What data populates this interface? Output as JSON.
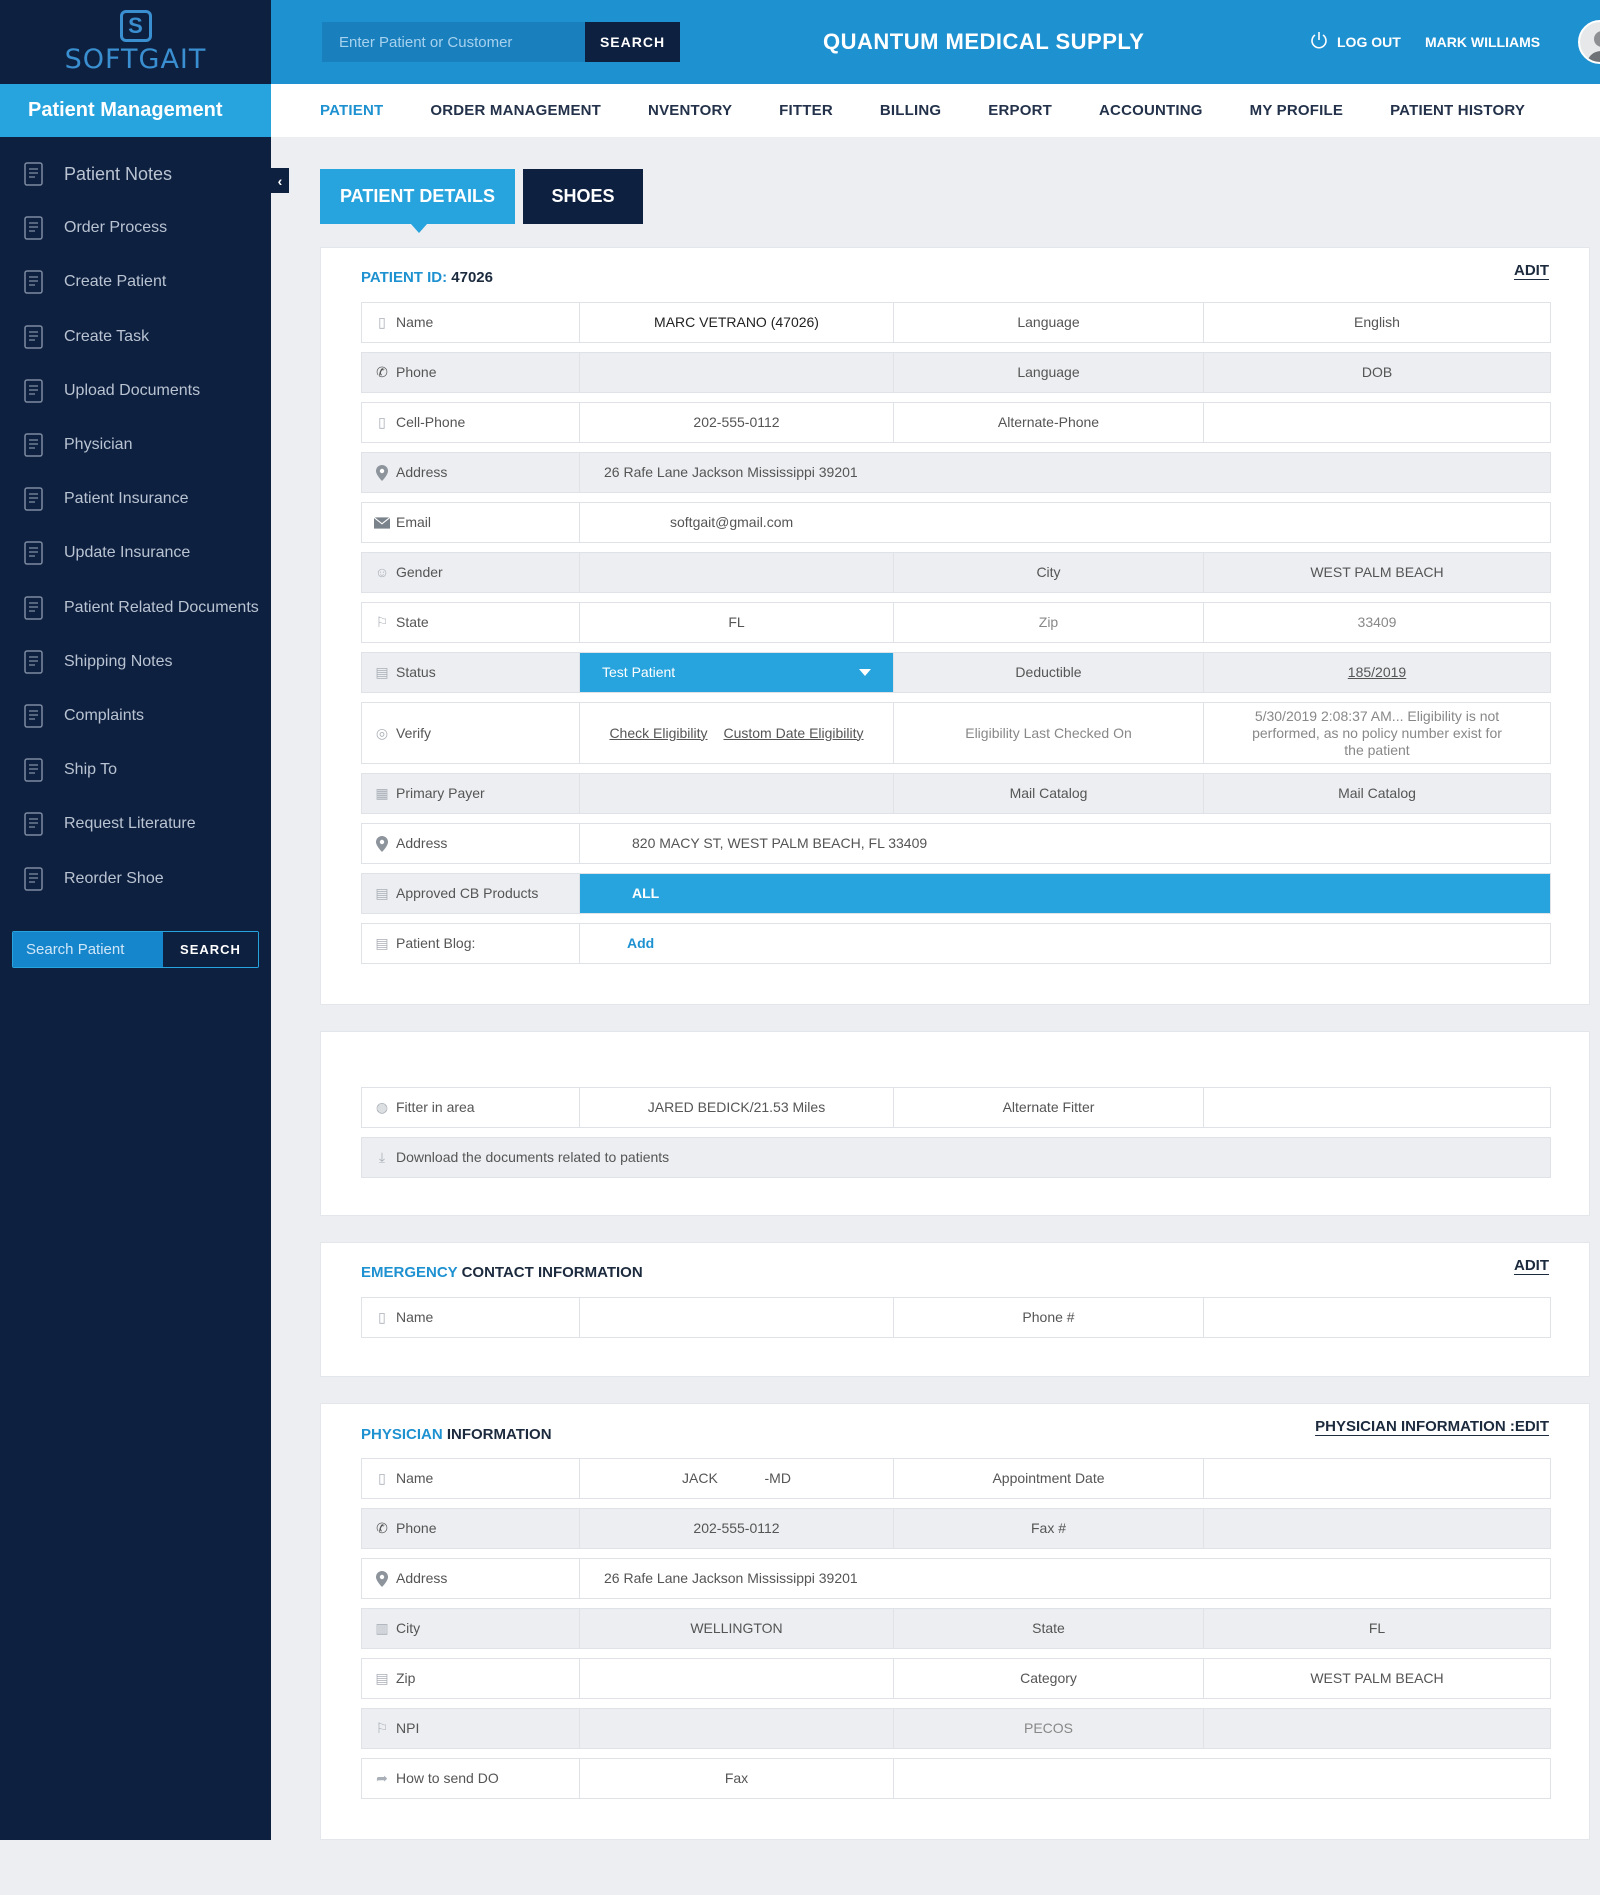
{
  "sidebar": {
    "logo_text": "SOFTGAIT",
    "title": "Patient Management",
    "items": [
      {
        "label": "Patient Notes",
        "icon": "notes-icon"
      },
      {
        "label": "Order Process",
        "icon": "truck-icon"
      },
      {
        "label": "Create Patient",
        "icon": "shield-icon"
      },
      {
        "label": "Create Task",
        "icon": "task-icon"
      },
      {
        "label": "Upload Documents",
        "icon": "upload-icon"
      },
      {
        "label": "Physician",
        "icon": "physician-icon"
      },
      {
        "label": "Patient Insurance",
        "icon": "insurance-icon"
      },
      {
        "label": "Update Insurance",
        "icon": "shield-icon"
      },
      {
        "label": "Patient Related Documents",
        "icon": "document-icon"
      },
      {
        "label": "Shipping Notes",
        "icon": "shipping-icon"
      },
      {
        "label": "Complaints",
        "icon": "complaints-icon"
      },
      {
        "label": "Ship To",
        "icon": "cart-icon"
      },
      {
        "label": "Request Literature",
        "icon": "literature-icon"
      },
      {
        "label": "Reorder Shoe",
        "icon": "reorder-icon"
      }
    ],
    "search": {
      "placeholder": "Search Patient",
      "button": "SEARCH"
    }
  },
  "topbar": {
    "search_placeholder": "Enter Patient or Customer",
    "search_button": "SEARCH",
    "company": "QUANTUM MEDICAL SUPPLY",
    "logout": "LOG OUT",
    "user": "MARK WILLIAMS"
  },
  "nav": [
    "PATIENT",
    "ORDER MANAGEMENT",
    "NVENTORY",
    "FITTER",
    "BILLING",
    "ERPORT",
    "ACCOUNTING",
    "MY PROFILE",
    "PATIENT HISTORY"
  ],
  "tabs": {
    "details": "PATIENT DETAILS",
    "shoes": "SHOES"
  },
  "patient": {
    "id_label": "PATIENT ID:",
    "id_value": "47026",
    "edit": "ADIT",
    "rows": {
      "name": [
        "Name",
        "MARC VETRANO (47026)",
        "Language",
        "English"
      ],
      "phone": [
        "Phone",
        "",
        "Language",
        "DOB"
      ],
      "cell": [
        "Cell-Phone",
        "202-555-0112",
        "Alternate-Phone",
        ""
      ],
      "address": [
        "Address",
        "26  Rafe Lane Jackson Mississippi 39201"
      ],
      "email": [
        "Email",
        "softgait@gmail.com"
      ],
      "gender": [
        "Gender",
        "",
        "City",
        "WEST PALM BEACH"
      ],
      "state": [
        "State",
        "FL",
        "Zip",
        "33409"
      ],
      "status": [
        "Status",
        "Test Patient",
        "Deductible",
        "185/2019"
      ],
      "verify": [
        "Verify",
        "Check Eligibility",
        "Custom Date Eligibility",
        "Eligibility Last Checked On",
        "5/30/2019  2:08:37 AM... Eligibility is not performed, as no policy number exist for the patient"
      ],
      "payer": [
        "Primary Payer",
        "",
        "Mail Catalog",
        "Mail Catalog"
      ],
      "address2": [
        "Address",
        "820 MACY ST, WEST PALM BEACH, FL 33409"
      ],
      "cb": [
        "Approved CB Products",
        "ALL"
      ],
      "blog": [
        "Patient Blog:",
        "Add"
      ]
    }
  },
  "fitter": {
    "row": [
      "Fitter in area",
      "JARED BEDICK/21.53 Miles",
      "Alternate Fitter",
      ""
    ],
    "download": "Download the documents related to patients"
  },
  "emergency": {
    "title_hl": "EMERGENCY",
    "title_rest": " CONTACT INFORMATION",
    "edit": "ADIT",
    "row": [
      "Name",
      "",
      "Phone #",
      ""
    ]
  },
  "physician": {
    "title_hl": "PHYSICIAN",
    "title_rest": "  INFORMATION",
    "edit": "PHYSICIAN INFORMATION :EDIT",
    "rows": {
      "name": [
        "Name",
        "JACK            -MD",
        "Appointment Date",
        ""
      ],
      "phone": [
        "Phone",
        "202-555-0112",
        "Fax #",
        ""
      ],
      "address": [
        "Address",
        "26  Rafe Lane Jackson Mississippi 39201"
      ],
      "city": [
        "City",
        "WELLINGTON",
        "State",
        "FL"
      ],
      "zip": [
        "Zip",
        "",
        "Category",
        "WEST PALM BEACH"
      ],
      "npi": [
        "NPI",
        "",
        "PECOS",
        ""
      ],
      "send": [
        "How to send DO",
        "Fax"
      ]
    }
  }
}
